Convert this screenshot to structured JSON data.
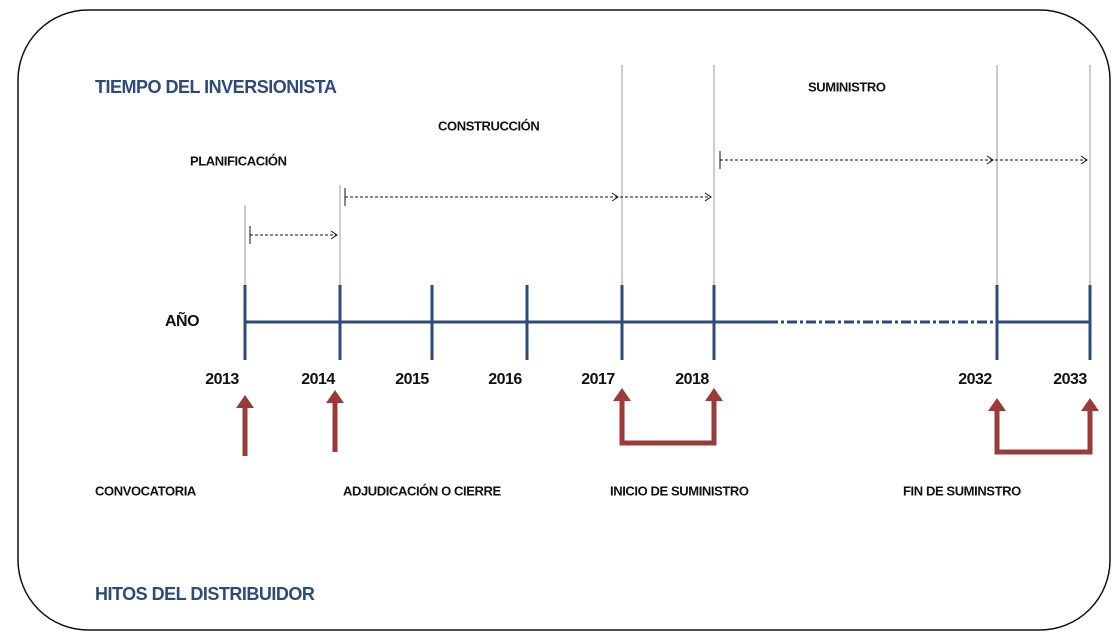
{
  "header": {
    "title": "TIEMPO DEL INVERSIONISTA"
  },
  "footer": {
    "title": "HITOS DEL DISTRIBUIDOR"
  },
  "axis": {
    "label": "AÑO",
    "years": [
      "2013",
      "2014",
      "2015",
      "2016",
      "2017",
      "2018",
      "2032",
      "2033"
    ]
  },
  "phases": [
    "PLANIFICACIÓN",
    "CONSTRUCCIÓN",
    "SUMINISTRO"
  ],
  "milestones": [
    "CONVOCATORIA",
    "ADJUDICACIÓN  O  CIERRE",
    "INICIO DE SUMINISTRO",
    "FIN DE SUMINSTRO"
  ]
}
